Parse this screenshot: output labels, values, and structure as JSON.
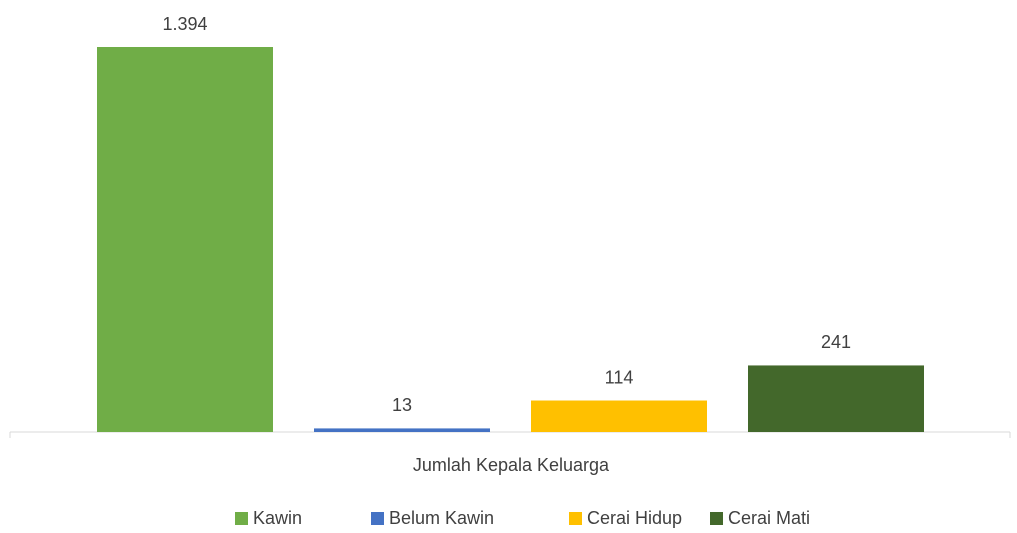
{
  "chart_data": {
    "type": "bar",
    "categories": [
      "Jumlah Kepala Keluarga"
    ],
    "series": [
      {
        "name": "Kawin",
        "color": "#70ad47",
        "values": [
          1394
        ],
        "value_labels": [
          "1.394"
        ]
      },
      {
        "name": "Belum Kawin",
        "color": "#4472c4",
        "values": [
          13
        ]
      },
      {
        "name": "Cerai Hidup",
        "color": "#ffc000",
        "values": [
          114
        ]
      },
      {
        "name": "Cerai Mati",
        "color": "#43682b",
        "values": [
          241
        ]
      }
    ],
    "legend": "bottom"
  }
}
